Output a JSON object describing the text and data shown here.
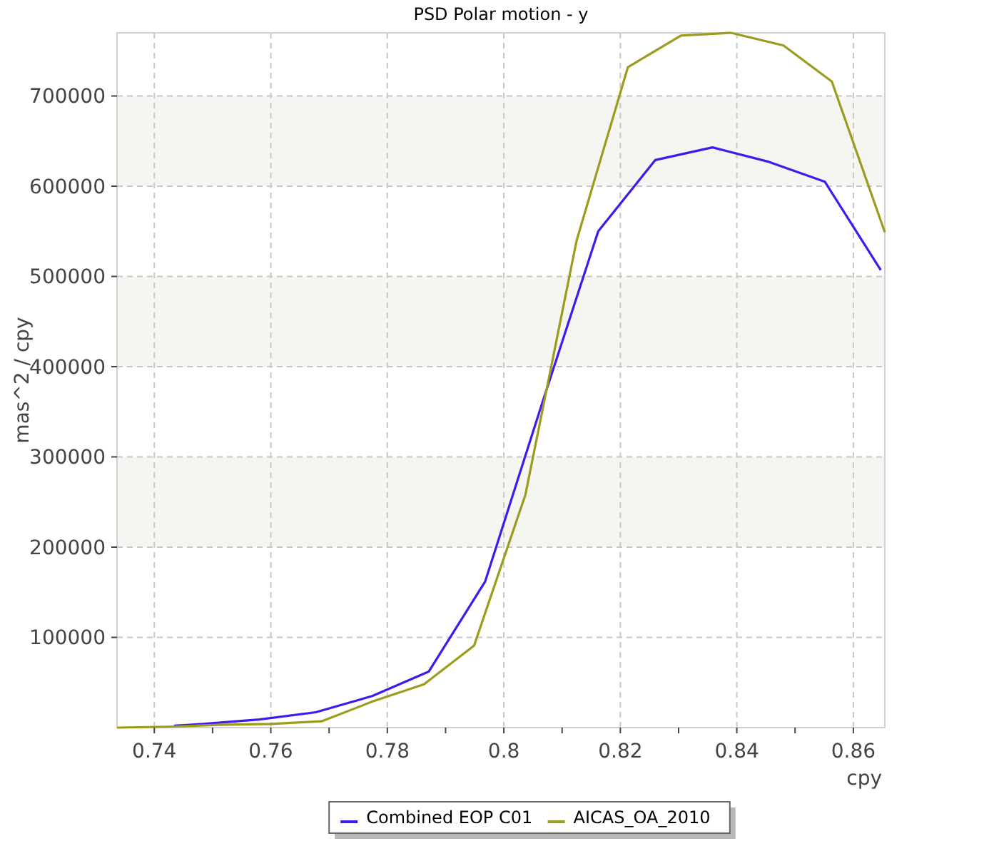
{
  "chart_data": {
    "type": "line",
    "title": "PSD Polar motion - y",
    "xlabel": "cpy",
    "ylabel": "mas^2 / cpy",
    "xlim": [
      0.7336,
      0.8654
    ],
    "ylim": [
      0,
      770000
    ],
    "xticks": [
      0.74,
      {
        "value": 0.75,
        "label": null
      },
      0.76,
      {
        "value": 0.77,
        "label": null
      },
      0.78,
      {
        "value": 0.79,
        "label": null
      },
      0.8,
      {
        "value": 0.81,
        "label": null
      },
      0.82,
      {
        "value": 0.83,
        "label": null
      },
      0.84,
      {
        "value": 0.85,
        "label": null
      },
      0.86
    ],
    "yticks": [
      100000,
      200000,
      300000,
      400000,
      500000,
      600000,
      700000
    ],
    "grid": true,
    "legend": "bottom",
    "line_style": "solid",
    "bands": [
      {
        "axis": "y",
        "from": 200000,
        "to": 300000,
        "color": "#f5f5f1"
      },
      {
        "axis": "y",
        "from": 400000,
        "to": 500000,
        "color": "#f5f5f1"
      },
      {
        "axis": "y",
        "from": 600000,
        "to": 700000,
        "color": "#f5f5f1"
      }
    ],
    "series": [
      {
        "name": "Combined EOP C01",
        "color": "#3f1af0",
        "x": [
          0.7434,
          0.7483,
          0.758,
          0.7677,
          0.7774,
          0.7871,
          0.7968,
          0.8065,
          0.8162,
          0.826,
          0.8358,
          0.8455,
          0.8551,
          0.8647
        ],
        "values": [
          2000,
          4000,
          9000,
          17000,
          35000,
          62000,
          162000,
          358000,
          550000,
          629000,
          643000,
          627000,
          605000,
          507000
        ]
      },
      {
        "name": "AICAS_OA_2010",
        "color": "#9c9c1c",
        "x": [
          0.7336,
          0.7424,
          0.751,
          0.76,
          0.7687,
          0.7775,
          0.7863,
          0.7949,
          0.8037,
          0.8125,
          0.8213,
          0.8304,
          0.839,
          0.848,
          0.8563,
          0.8654
        ],
        "values": [
          0,
          1000,
          3000,
          4000,
          7000,
          29000,
          48000,
          91000,
          258000,
          540000,
          732000,
          767000,
          770000,
          756000,
          716000,
          549000
        ]
      }
    ]
  }
}
